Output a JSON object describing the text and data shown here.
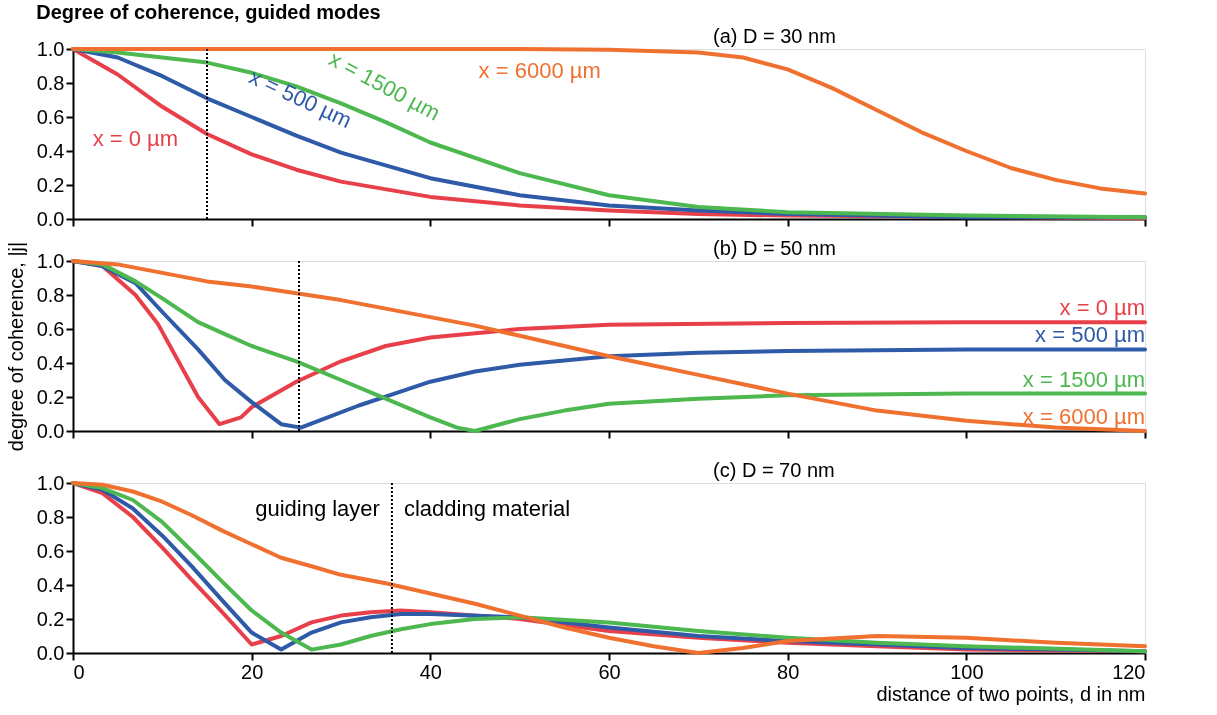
{
  "chart_data": [
    {
      "type": "line",
      "title": "Degree of coherence, guided modes",
      "annotations": [
        "(a) D = 30 nm"
      ],
      "xlim": [
        0,
        120
      ],
      "xticks": [
        0,
        20,
        40,
        60,
        80,
        100,
        120
      ],
      "ylim": [
        0,
        1
      ],
      "yticks": [
        {
          "value": 0,
          "label": "0.0"
        },
        {
          "value": 0.2,
          "label": "0.2"
        },
        {
          "value": 0.4,
          "label": "0.4"
        },
        {
          "value": 0.6,
          "label": "0.6"
        },
        {
          "value": 0.8,
          "label": "0.8"
        },
        {
          "value": 1,
          "label": "1.0"
        }
      ],
      "tick_labels": "y",
      "grid": false,
      "legend": false,
      "marker": "none",
      "line_style": "solid",
      "ref_lines": [
        {
          "axis": "x",
          "value": 15,
          "line_style": "dotted",
          "color": "#000000"
        }
      ],
      "series": [
        {
          "name": "x = 0 µm",
          "color": "#e8404a",
          "x": [
            0,
            5,
            10,
            15,
            20,
            25,
            30,
            40,
            50,
            60,
            70,
            80,
            120
          ],
          "values": [
            1,
            0.85,
            0.66,
            0.5,
            0.38,
            0.29,
            0.22,
            0.13,
            0.08,
            0.05,
            0.03,
            0.02,
            0.005
          ]
        },
        {
          "name": "x = 500 µm",
          "color": "#2e5aa8",
          "x": [
            0,
            5,
            10,
            15,
            20,
            25,
            30,
            40,
            50,
            60,
            70,
            80,
            100,
            120
          ],
          "values": [
            1,
            0.95,
            0.84,
            0.71,
            0.6,
            0.49,
            0.39,
            0.24,
            0.14,
            0.08,
            0.05,
            0.03,
            0.01,
            0.01
          ]
        },
        {
          "name": "x = 1500 µm",
          "color": "#4cb84f",
          "x": [
            0,
            5,
            10,
            15,
            20,
            25,
            30,
            35,
            40,
            50,
            60,
            70,
            80,
            100,
            120
          ],
          "values": [
            1,
            0.98,
            0.95,
            0.92,
            0.86,
            0.78,
            0.68,
            0.57,
            0.45,
            0.27,
            0.14,
            0.07,
            0.04,
            0.02,
            0.01
          ]
        },
        {
          "name": "x = 6000 µm",
          "color": "#f07030",
          "x": [
            0,
            10,
            20,
            30,
            40,
            50,
            60,
            70,
            75,
            80,
            85,
            90,
            95,
            100,
            105,
            110,
            115,
            120
          ],
          "values": [
            1,
            1,
            1,
            1,
            1,
            1,
            0.995,
            0.98,
            0.95,
            0.88,
            0.77,
            0.64,
            0.51,
            0.4,
            0.3,
            0.23,
            0.18,
            0.15
          ]
        }
      ]
    },
    {
      "type": "line",
      "ylabel": "degree of coherence, |j|",
      "annotations": [
        "(b) D = 50 nm"
      ],
      "xlim": [
        0,
        120
      ],
      "xticks": [
        0,
        20,
        40,
        60,
        80,
        100,
        120
      ],
      "ylim": [
        0,
        1
      ],
      "yticks": [
        {
          "value": 0,
          "label": "0.0"
        },
        {
          "value": 0.2,
          "label": "0.2"
        },
        {
          "value": 0.4,
          "label": "0.4"
        },
        {
          "value": 0.6,
          "label": "0.6"
        },
        {
          "value": 0.8,
          "label": "0.8"
        },
        {
          "value": 1,
          "label": "1.0"
        }
      ],
      "tick_labels": "y",
      "grid": false,
      "legend": false,
      "marker": "none",
      "line_style": "solid",
      "ref_lines": [
        {
          "axis": "x",
          "value": 25.3,
          "line_style": "dotted",
          "color": "#000000"
        }
      ],
      "series": [
        {
          "name": "x = 0 µm",
          "color": "#e8404a",
          "x": [
            0,
            3.3,
            7,
            9.5,
            14,
            16.4,
            18.8,
            20,
            25,
            30,
            35,
            40,
            50,
            60,
            80,
            100,
            120
          ],
          "values": [
            1,
            0.97,
            0.8,
            0.63,
            0.2,
            0.04,
            0.08,
            0.14,
            0.29,
            0.41,
            0.5,
            0.55,
            0.6,
            0.625,
            0.635,
            0.64,
            0.64
          ]
        },
        {
          "name": "x = 500 µm",
          "color": "#2e5aa8",
          "x": [
            0,
            3.3,
            7,
            10,
            14,
            17,
            20,
            23.3,
            25.5,
            28,
            32,
            36,
            40,
            45,
            50,
            60,
            70,
            80,
            100,
            120
          ],
          "values": [
            1,
            0.97,
            0.87,
            0.7,
            0.48,
            0.3,
            0.17,
            0.04,
            0.02,
            0.07,
            0.15,
            0.22,
            0.29,
            0.35,
            0.39,
            0.44,
            0.46,
            0.47,
            0.48,
            0.48
          ]
        },
        {
          "name": "x = 1500 µm",
          "color": "#4cb84f",
          "x": [
            0,
            3.3,
            7,
            10,
            14,
            17,
            20,
            25,
            30,
            35,
            40,
            43,
            45,
            50,
            55,
            60,
            70,
            80,
            100,
            120
          ],
          "values": [
            1,
            0.98,
            0.88,
            0.78,
            0.64,
            0.57,
            0.5,
            0.41,
            0.3,
            0.19,
            0.08,
            0.02,
            0,
            0.07,
            0.12,
            0.16,
            0.19,
            0.21,
            0.22,
            0.22
          ]
        },
        {
          "name": "x = 6000 µm",
          "color": "#f07030",
          "x": [
            0,
            5,
            10,
            15,
            20,
            25,
            30,
            35,
            40,
            45,
            50,
            55,
            60,
            70,
            80,
            90,
            100,
            110,
            120
          ],
          "values": [
            1,
            0.98,
            0.93,
            0.88,
            0.85,
            0.81,
            0.77,
            0.72,
            0.67,
            0.62,
            0.56,
            0.5,
            0.44,
            0.33,
            0.22,
            0.12,
            0.06,
            0.02,
            0
          ]
        }
      ]
    },
    {
      "type": "line",
      "xlabel": "distance of two points, d in nm",
      "annotations": [
        "(c) D = 70 nm",
        "guiding layer",
        "cladding material"
      ],
      "xlim": [
        0,
        120
      ],
      "xticks": [
        0,
        20,
        40,
        60,
        80,
        100,
        120
      ],
      "ylim": [
        0,
        1
      ],
      "yticks": [
        {
          "value": 0,
          "label": "0.0"
        },
        {
          "value": 0.2,
          "label": "0.2"
        },
        {
          "value": 0.4,
          "label": "0.4"
        },
        {
          "value": 0.6,
          "label": "0.6"
        },
        {
          "value": 0.8,
          "label": "0.8"
        },
        {
          "value": 1,
          "label": "1.0"
        }
      ],
      "grid": false,
      "legend": false,
      "marker": "none",
      "line_style": "solid",
      "ref_lines": [
        {
          "axis": "x",
          "value": 35.7,
          "line_style": "dotted",
          "color": "#000000"
        }
      ],
      "series": [
        {
          "color": "#e8404a",
          "x": [
            0,
            3.3,
            6.7,
            10,
            13.3,
            16.7,
            20,
            23.3,
            26.7,
            30,
            33.3,
            36.7,
            40,
            50,
            60,
            70,
            80,
            90,
            100,
            120
          ],
          "values": [
            1,
            0.94,
            0.8,
            0.62,
            0.43,
            0.24,
            0.05,
            0.1,
            0.18,
            0.22,
            0.24,
            0.25,
            0.24,
            0.2,
            0.13,
            0.09,
            0.06,
            0.04,
            0.02,
            0.01
          ]
        },
        {
          "color": "#2e5aa8",
          "x": [
            0,
            3.3,
            6.7,
            10,
            13.3,
            16.7,
            20,
            23.3,
            26.7,
            30,
            33.3,
            36.7,
            40,
            50,
            60,
            70,
            80,
            90,
            100,
            120
          ],
          "values": [
            1,
            0.96,
            0.85,
            0.69,
            0.51,
            0.31,
            0.12,
            0.02,
            0.12,
            0.18,
            0.21,
            0.23,
            0.23,
            0.21,
            0.15,
            0.1,
            0.07,
            0.05,
            0.03,
            0.01
          ]
        },
        {
          "color": "#4cb84f",
          "x": [
            0,
            3.3,
            6.7,
            10,
            13.3,
            16.7,
            20,
            23.3,
            26.7,
            30,
            33.3,
            36.7,
            40,
            45,
            50,
            60,
            70,
            80,
            90,
            100,
            120
          ],
          "values": [
            1,
            0.97,
            0.9,
            0.77,
            0.6,
            0.42,
            0.25,
            0.12,
            0.02,
            0.05,
            0.1,
            0.14,
            0.17,
            0.2,
            0.21,
            0.18,
            0.13,
            0.09,
            0.06,
            0.04,
            0.01
          ]
        },
        {
          "color": "#f07030",
          "x": [
            0,
            3.3,
            6.7,
            10,
            13.3,
            16.7,
            20,
            23.3,
            26.7,
            30,
            35,
            40,
            45,
            50,
            55,
            60,
            65,
            70,
            75,
            80,
            90,
            100,
            110,
            120
          ],
          "values": [
            1,
            0.99,
            0.95,
            0.89,
            0.81,
            0.72,
            0.64,
            0.56,
            0.51,
            0.46,
            0.41,
            0.35,
            0.29,
            0.22,
            0.15,
            0.09,
            0.04,
            0,
            0.03,
            0.07,
            0.1,
            0.09,
            0.06,
            0.04
          ]
        }
      ]
    }
  ]
}
